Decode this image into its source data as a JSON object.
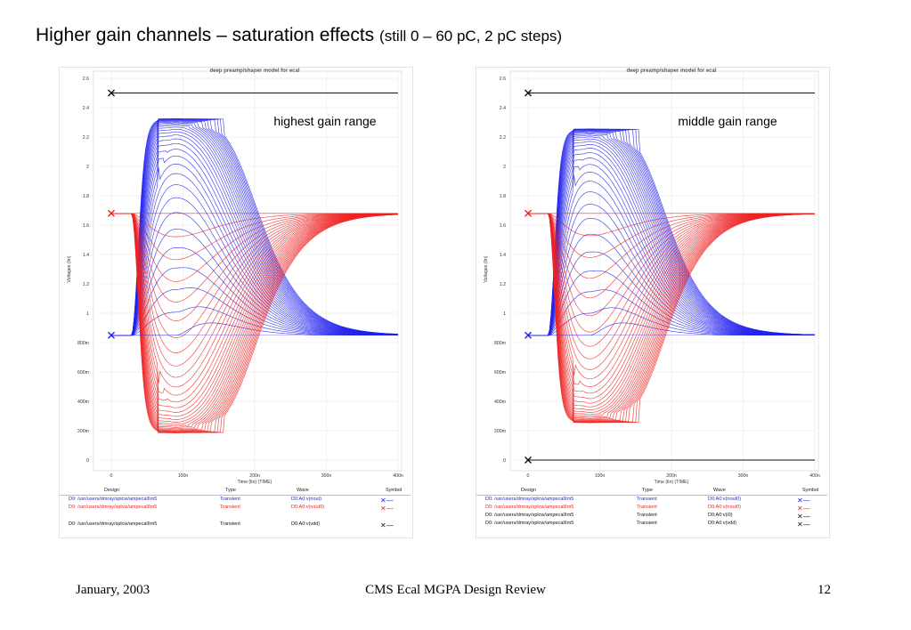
{
  "slide": {
    "title_main": "Higher gain channels – saturation effects ",
    "title_sub": "(still 0 – 60 pC, 2 pC steps)"
  },
  "footer": {
    "date": "January, 2003",
    "center": "CMS Ecal MGPA Design Review",
    "page": "12"
  },
  "colors": {
    "blue": "#2222ee",
    "red": "#ee2222",
    "black": "#111111",
    "grid": "#e3e3e3"
  },
  "chart_data": [
    {
      "type": "line",
      "title": "deep preamp/shaper model for ecal",
      "annotation": "highest gain range",
      "xlabel": "Time (lin) (TIME)",
      "ylabel": "Voltages (lin)",
      "xlim": [
        0,
        400
      ],
      "ylim": [
        0,
        2.6
      ],
      "x_ticks": [
        "0",
        "100n",
        "200n",
        "300n",
        "400n"
      ],
      "y_ticks": [
        "0",
        "200m",
        "400m",
        "600m",
        "800m",
        "1",
        "1.2",
        "1.4",
        "1.6",
        "1.8",
        "2",
        "2.2",
        "2.4",
        "2.6"
      ],
      "x_unit": "ns",
      "baseline_levels": {
        "blue": 0.85,
        "red": 1.68,
        "black": 2.5
      },
      "pulse_start_ns": 28,
      "extreme_envelope": {
        "blue_peak": 2.33,
        "red_min": 0.18,
        "saturation_ends_ns": 175
      },
      "charge_steps": {
        "from_pC": 0,
        "to_pC": 60,
        "step_pC": 2,
        "count": 31
      },
      "series": [
        {
          "color": "blue",
          "values_description": ""
        },
        {
          "color": "red"
        },
        {
          "color": "black",
          "values": [
            [
              0,
              2.5
            ],
            [
              400,
              2.5
            ]
          ]
        }
      ],
      "legend": {
        "headers": [
          "Design",
          "Type",
          "Wave",
          "Symbol"
        ],
        "rows": [
          {
            "design": "D0: /usr/users/dmray/splcw/ampecalIIm5",
            "type": "Transient",
            "wave": "D0:A0:v(nout)",
            "color": "blue"
          },
          {
            "design": "D0: /usr/users/dmray/splcw/ampecalIIm5",
            "type": "Transient",
            "wave": "D0:A0:v(nout0)",
            "color": "red"
          },
          {
            "design": "D0: /usr/users/dmray/splcw/ampecalIIm5",
            "type": "Transient",
            "wave": "D0:A0:v(vdd)",
            "color": "black"
          }
        ]
      }
    },
    {
      "type": "line",
      "title": "deep preamp/shaper model for ecal",
      "annotation": "middle gain range",
      "xlabel": "Time (lin) (TIME)",
      "ylabel": "Voltages (lin)",
      "xlim": [
        0,
        400
      ],
      "ylim": [
        0,
        2.6
      ],
      "x_ticks": [
        "0",
        "100n",
        "200n",
        "300n",
        "400n"
      ],
      "y_ticks": [
        "0",
        "200m",
        "400m",
        "600m",
        "800m",
        "1",
        "1.2",
        "1.4",
        "1.6",
        "1.8",
        "2",
        "2.2",
        "2.4",
        "2.6"
      ],
      "x_unit": "ns",
      "baseline_levels": {
        "blue": 0.85,
        "red": 1.68,
        "black_top": 2.5,
        "black_bottom": 0.0
      },
      "pulse_start_ns": 28,
      "extreme_envelope": {
        "blue_peak": 2.26,
        "red_min": 0.25,
        "saturation_ends_ns": 145
      },
      "charge_steps": {
        "from_pC": 0,
        "to_pC": 60,
        "step_pC": 2,
        "count": 31
      },
      "series": [
        {
          "color": "blue"
        },
        {
          "color": "red"
        },
        {
          "color": "black",
          "values": [
            [
              0,
              2.5
            ],
            [
              400,
              2.5
            ]
          ]
        },
        {
          "color": "black",
          "values": [
            [
              0,
              0.0
            ],
            [
              400,
              0.0
            ]
          ]
        }
      ],
      "legend": {
        "headers": [
          "Design",
          "Type",
          "Wave",
          "Symbol"
        ],
        "rows": [
          {
            "design": "D0: /usr/users/dmray/splcw/ampecalIIm5",
            "type": "Transient",
            "wave": "D0:A0:v(nout0)",
            "color": "blue"
          },
          {
            "design": "D0: /usr/users/dmray/splcw/ampecalIIm5",
            "type": "Transient",
            "wave": "D0:A0:v(nout0)",
            "color": "red"
          },
          {
            "design": "D0: /usr/users/dmray/splcw/ampecalIIm5",
            "type": "Transient",
            "wave": "D0:A0:v(i0)",
            "color": "black"
          },
          {
            "design": "D0: /usr/users/dmray/splcw/ampecalIIm5",
            "type": "Transient",
            "wave": "D0:A0:v(vdd)",
            "color": "black"
          }
        ]
      }
    }
  ]
}
